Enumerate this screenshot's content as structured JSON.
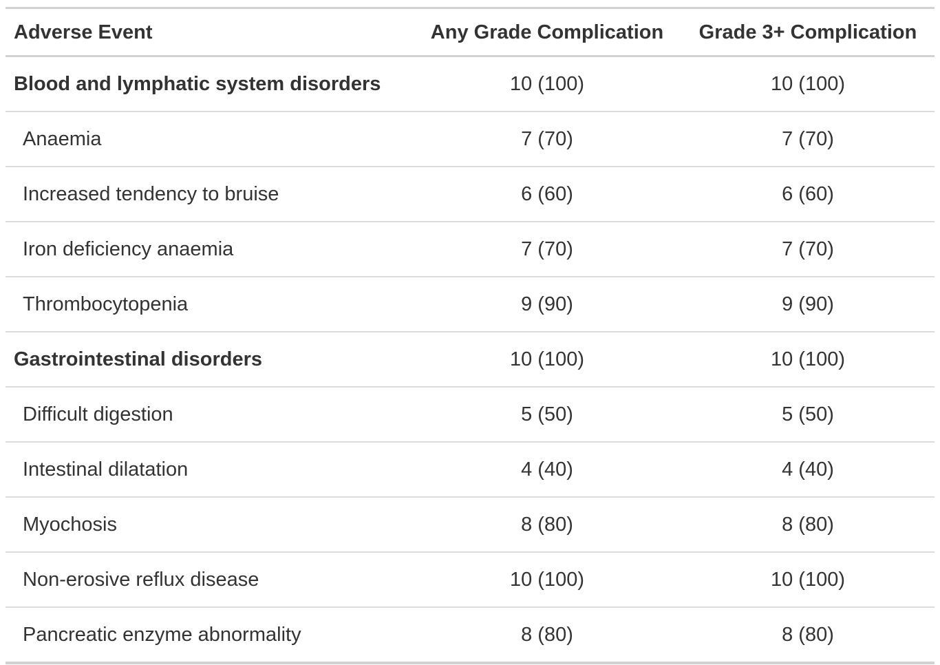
{
  "chart_data": {
    "type": "table",
    "columns": [
      "Adverse Event",
      "Any Grade Complication",
      "Grade 3+ Complication"
    ],
    "rows": [
      {
        "label": "Blood and lymphatic system disorders",
        "level": "group",
        "any_grade": "10 (100)",
        "grade_3plus": "10 (100)"
      },
      {
        "label": "Anaemia",
        "level": "item",
        "any_grade": "7 (70)",
        "grade_3plus": "7 (70)"
      },
      {
        "label": "Increased tendency to bruise",
        "level": "item",
        "any_grade": "6 (60)",
        "grade_3plus": "6 (60)"
      },
      {
        "label": "Iron deficiency anaemia",
        "level": "item",
        "any_grade": "7 (70)",
        "grade_3plus": "7 (70)"
      },
      {
        "label": "Thrombocytopenia",
        "level": "item",
        "any_grade": "9 (90)",
        "grade_3plus": "9 (90)"
      },
      {
        "label": "Gastrointestinal disorders",
        "level": "group",
        "any_grade": "10 (100)",
        "grade_3plus": "10 (100)"
      },
      {
        "label": "Difficult digestion",
        "level": "item",
        "any_grade": "5 (50)",
        "grade_3plus": "5 (50)"
      },
      {
        "label": "Intestinal dilatation",
        "level": "item",
        "any_grade": "4 (40)",
        "grade_3plus": "4 (40)"
      },
      {
        "label": "Myochosis",
        "level": "item",
        "any_grade": "8 (80)",
        "grade_3plus": "8 (80)"
      },
      {
        "label": "Non-erosive reflux disease",
        "level": "item",
        "any_grade": "10 (100)",
        "grade_3plus": "10 (100)"
      },
      {
        "label": "Pancreatic enzyme abnormality",
        "level": "item",
        "any_grade": "8 (80)",
        "grade_3plus": "8 (80)"
      }
    ]
  },
  "colors": {
    "background": "#ffffff",
    "text": "#333333",
    "border_heavy": "#d2d2d2",
    "border_light": "#dcdcdc"
  }
}
